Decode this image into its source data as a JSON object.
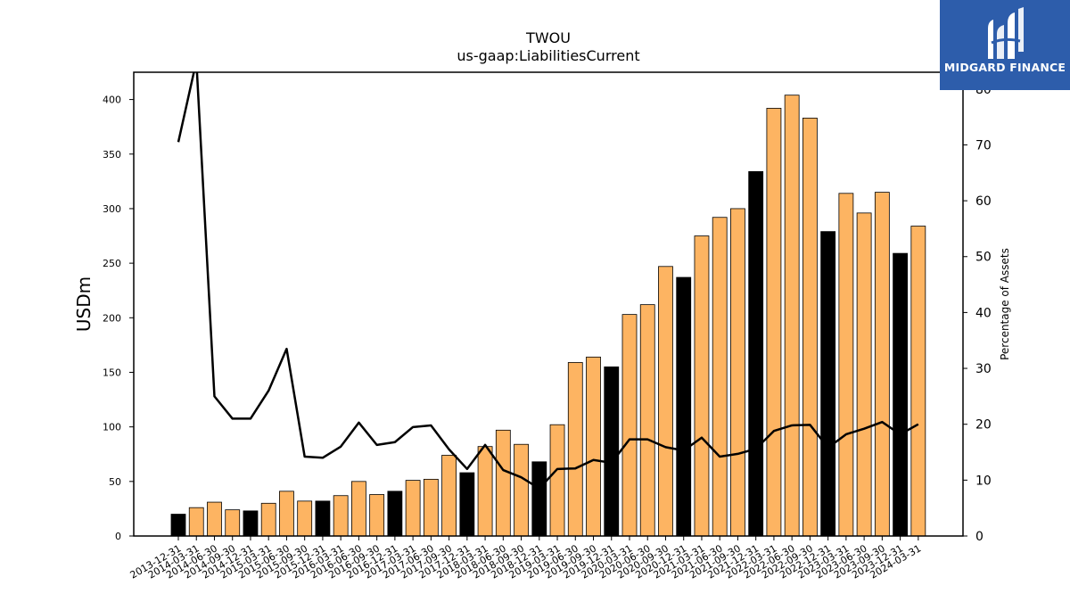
{
  "chart_data": {
    "type": "bar",
    "title": "TWOU",
    "subtitle": "us-gaap:LiabilitiesCurrent",
    "ylabel": "USDm",
    "y2label": "Percentage of Assets",
    "ylim": [
      0,
      425
    ],
    "y2lim": [
      0,
      83
    ],
    "yticks": [
      0,
      50,
      100,
      150,
      200,
      250,
      300,
      350,
      400
    ],
    "y2ticks": [
      0,
      10,
      20,
      30,
      40,
      50,
      60,
      70,
      80
    ],
    "colors": {
      "quarter": "#fdb462",
      "annual": "#000000",
      "line": "#000000",
      "edge": "#000000"
    },
    "categories": [
      "2013-12-31",
      "2014-03-31",
      "2014-06-30",
      "2014-09-30",
      "2014-12-31",
      "2015-03-31",
      "2015-06-30",
      "2015-09-30",
      "2015-12-31",
      "2016-03-31",
      "2016-06-30",
      "2016-09-30",
      "2016-12-31",
      "2017-03-31",
      "2017-06-30",
      "2017-09-30",
      "2017-12-31",
      "2018-03-31",
      "2018-06-30",
      "2018-09-30",
      "2018-12-31",
      "2019-03-31",
      "2019-06-30",
      "2019-09-30",
      "2019-12-31",
      "2020-03-31",
      "2020-06-30",
      "2020-09-30",
      "2020-12-31",
      "2021-03-31",
      "2021-06-30",
      "2021-09-30",
      "2021-12-31",
      "2022-03-31",
      "2022-06-30",
      "2022-09-30",
      "2022-12-31",
      "2023-03-31",
      "2023-06-30",
      "2023-09-30",
      "2023-12-31",
      "2024-03-31"
    ],
    "series": [
      {
        "type": "bar",
        "values": [
          20,
          26,
          31,
          24,
          23,
          30,
          41,
          32,
          32,
          37,
          50,
          38,
          41,
          51,
          52,
          74,
          58,
          82,
          97,
          84,
          68,
          102,
          159,
          164,
          155,
          203,
          212,
          247,
          237,
          275,
          292,
          300,
          334,
          392,
          404,
          383,
          279,
          314,
          296,
          315,
          259,
          284
        ],
        "annual": [
          true,
          false,
          false,
          false,
          true,
          false,
          false,
          false,
          true,
          false,
          false,
          false,
          true,
          false,
          false,
          false,
          true,
          false,
          false,
          false,
          true,
          false,
          false,
          false,
          true,
          false,
          false,
          false,
          true,
          false,
          false,
          false,
          true,
          false,
          false,
          false,
          true,
          false,
          false,
          false,
          true,
          false
        ]
      },
      {
        "type": "line",
        "axis": "right",
        "values": [
          70.5,
          85,
          25,
          21,
          21,
          26,
          33.5,
          14.2,
          14,
          16,
          20.3,
          16.3,
          16.8,
          19.5,
          19.8,
          15.5,
          12,
          16.3,
          11.8,
          10.5,
          8.5,
          12,
          12.1,
          13.6,
          13.1,
          17.3,
          17.3,
          15.9,
          15.3,
          17.6,
          14.2,
          14.7,
          15.6,
          18.8,
          19.8,
          19.9,
          15.8,
          18.2,
          19.2,
          20.4,
          18.2,
          20
        ]
      }
    ]
  },
  "logo": {
    "name": "MIDGARD FINANCE"
  }
}
